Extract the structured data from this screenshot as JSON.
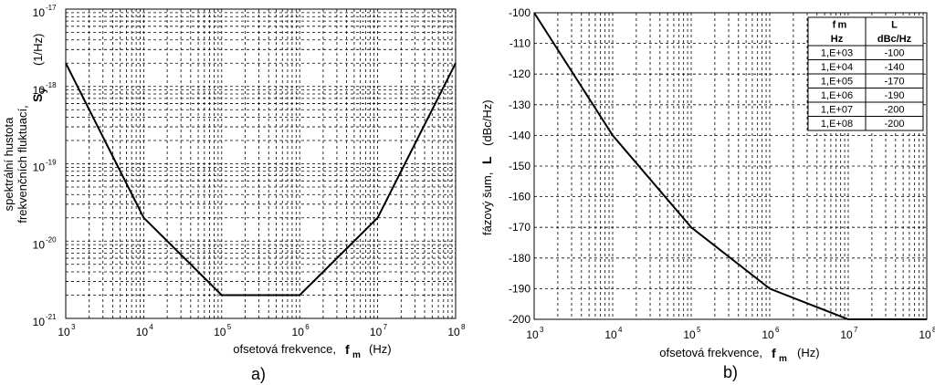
{
  "panel_labels": [
    "a)",
    "b)"
  ],
  "axis_text": {
    "xlabel_a": "ofsetová frekvence,",
    "xlabel_b": "ofsetová frekvence,",
    "x_symbol": "f",
    "x_symbol_sub": "m",
    "x_unit": "(Hz)",
    "ylabel_a_line1": "spektrální hustota",
    "ylabel_a_line2": "frekvenčních fluktuací,",
    "y_symbol_a": "S",
    "y_symbol_a_sub": "y",
    "y_unit_a": "(1/Hz)",
    "ylabel_b": "fázový šum,",
    "y_symbol_b": "L",
    "y_unit_b": "(dBc/Hz)"
  },
  "table": {
    "col_headers": [
      "f",
      "L"
    ],
    "col_header_sub": [
      "m",
      ""
    ],
    "col_units": [
      "Hz",
      "dBc/Hz"
    ],
    "rows": [
      [
        "1,E+03",
        "-100"
      ],
      [
        "1,E+04",
        "-140"
      ],
      [
        "1,E+05",
        "-170"
      ],
      [
        "1,E+06",
        "-190"
      ],
      [
        "1,E+07",
        "-200"
      ],
      [
        "1,E+08",
        "-200"
      ]
    ]
  },
  "chart_data": [
    {
      "type": "line",
      "panel": "a)",
      "xscale": "log",
      "yscale": "log",
      "xlim": [
        1000,
        100000000
      ],
      "ylim": [
        1e-21,
        1e-17
      ],
      "x_ticks": [
        "10^3",
        "10^4",
        "10^5",
        "10^6",
        "10^7",
        "10^8"
      ],
      "y_ticks": [
        "10^-21",
        "10^-20",
        "10^-19",
        "10^-18",
        "10^-17"
      ],
      "grid": true,
      "x": [
        1000,
        10000,
        100000,
        1000000,
        10000000,
        100000000
      ],
      "y": [
        2e-18,
        2e-20,
        2e-21,
        2e-21,
        2e-20,
        2e-18
      ]
    },
    {
      "type": "line",
      "panel": "b)",
      "xscale": "log",
      "yscale": "linear",
      "xlim": [
        1000,
        100000000
      ],
      "ylim": [
        -200,
        -100
      ],
      "x_ticks": [
        "10^3",
        "10^4",
        "10^5",
        "10^6",
        "10^7",
        "10^8"
      ],
      "y_ticks": [
        "-100",
        "-110",
        "-120",
        "-130",
        "-140",
        "-150",
        "-160",
        "-170",
        "-180",
        "-190",
        "-200"
      ],
      "grid": true,
      "x": [
        1000,
        10000,
        100000,
        1000000,
        10000000,
        100000000
      ],
      "y": [
        -100,
        -140,
        -170,
        -190,
        -200,
        -200
      ]
    }
  ]
}
